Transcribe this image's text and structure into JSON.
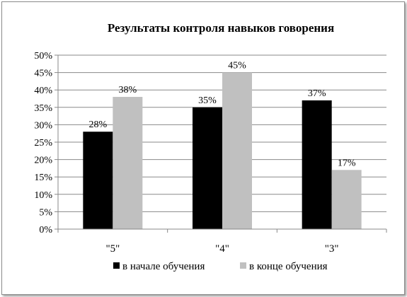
{
  "chart_data": {
    "type": "bar",
    "title": "Результаты контроля навыков говорения",
    "xlabel": "",
    "ylabel": "",
    "categories": [
      "\"5\"",
      "\"4\"",
      "\"3\""
    ],
    "series": [
      {
        "name": "в начале обучения",
        "values": [
          28,
          35,
          37
        ],
        "labels": [
          "28%",
          "35%",
          "37%"
        ],
        "color": "#000000"
      },
      {
        "name": "в конце обучения",
        "values": [
          38,
          45,
          17
        ],
        "labels": [
          "38%",
          "45%",
          "17%"
        ],
        "color": "#c0c0c0"
      }
    ],
    "ylim": [
      0,
      50
    ],
    "yticks": [
      0,
      5,
      10,
      15,
      20,
      25,
      30,
      35,
      40,
      45,
      50
    ],
    "ytick_labels": [
      "0%",
      "5%",
      "10%",
      "15%",
      "20%",
      "25%",
      "30%",
      "35%",
      "40%",
      "45%",
      "50%"
    ],
    "grid": true,
    "legend_position": "bottom"
  }
}
